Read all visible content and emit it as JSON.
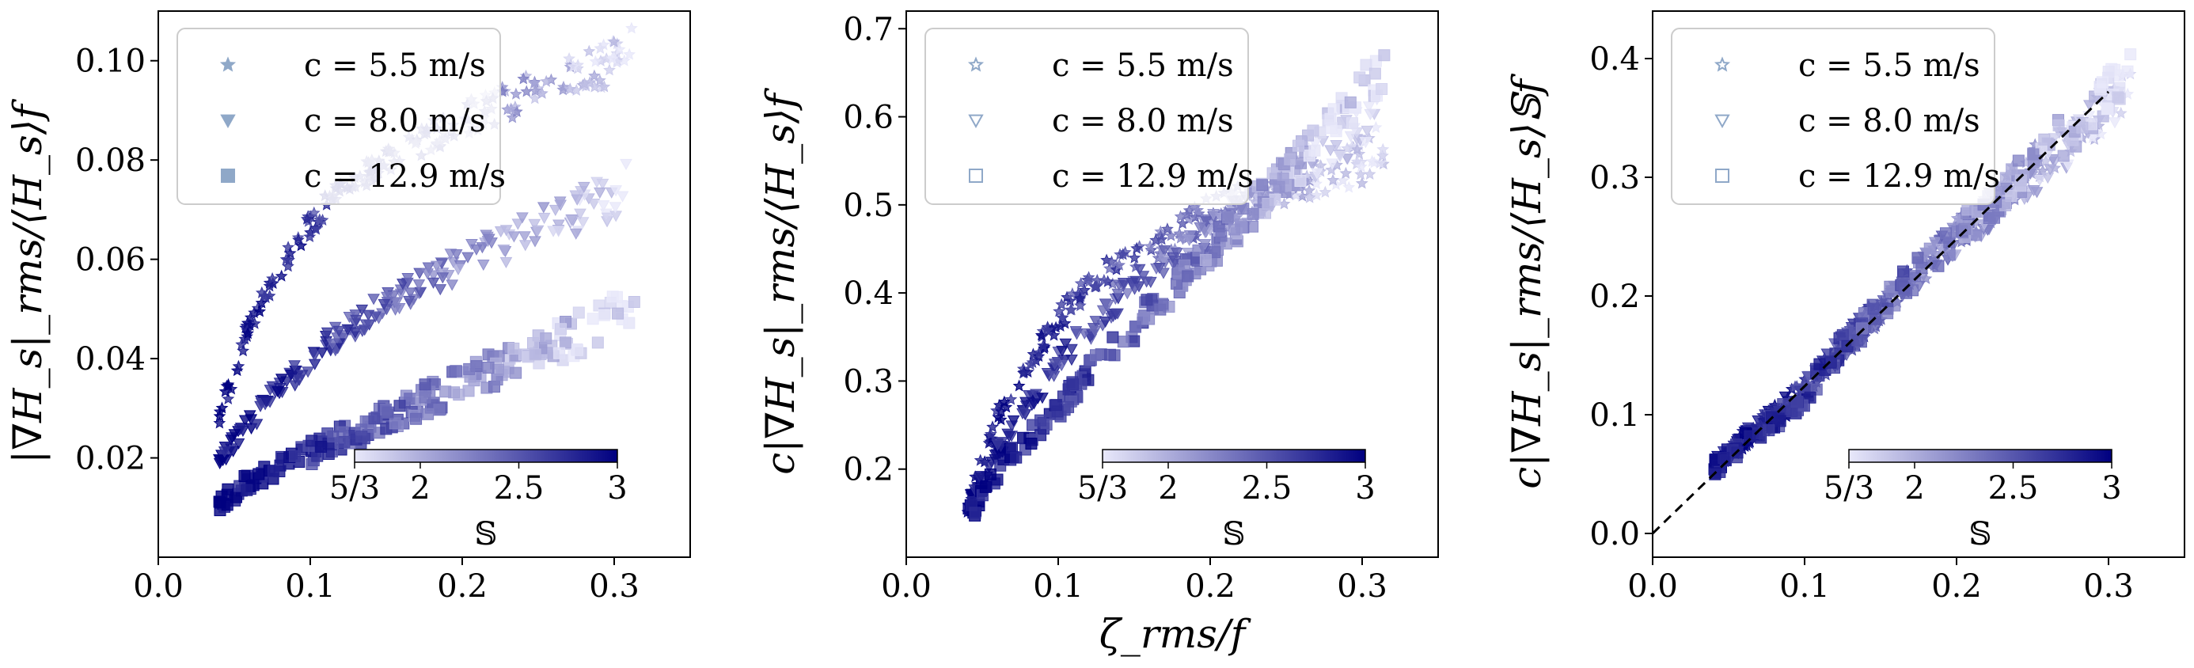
{
  "figure": {
    "panel_count": 3
  },
  "chart_data": [
    {
      "type": "scatter",
      "title": "",
      "xlabel": "",
      "ylabel": "|∇H_s|_rms/⟨H_s⟩f",
      "xlim": [
        0.0,
        0.35
      ],
      "ylim": [
        0.0,
        0.11
      ],
      "xticks": [
        0.0,
        0.1,
        0.2,
        0.3
      ],
      "xtick_labels": [
        "0.0",
        "0.1",
        "0.2",
        "0.3"
      ],
      "yticks": [
        0.02,
        0.04,
        0.06,
        0.08,
        0.1
      ],
      "ytick_labels": [
        "0.02",
        "0.04",
        "0.06",
        "0.08",
        "0.10"
      ],
      "legend_position": "top-left",
      "legend_marker_style": "filled",
      "colorbar": {
        "label": "𝕊",
        "range": [
          1.6667,
          3.0
        ],
        "ticks": [
          1.6667,
          2.0,
          2.5,
          3.0
        ],
        "tick_labels": [
          "5/3",
          "2",
          "2.5",
          "3"
        ],
        "cmap": [
          "#e8e8fa",
          "#000080"
        ]
      },
      "series": [
        {
          "name": "c = 5.5 m/s",
          "marker": "star",
          "x_range": [
            0.04,
            0.315
          ],
          "band": [
            [
              0.04,
              0.028
            ],
            [
              0.06,
              0.047
            ],
            [
              0.08,
              0.058
            ],
            [
              0.1,
              0.067
            ],
            [
              0.12,
              0.074
            ],
            [
              0.15,
              0.08
            ],
            [
              0.2,
              0.088
            ],
            [
              0.25,
              0.094
            ],
            [
              0.3,
              0.1
            ],
            [
              0.315,
              0.104
            ]
          ]
        },
        {
          "name": "c = 8.0 m/s",
          "marker": "triangle-down",
          "x_range": [
            0.04,
            0.31
          ],
          "band": [
            [
              0.04,
              0.019
            ],
            [
              0.06,
              0.027
            ],
            [
              0.08,
              0.034
            ],
            [
              0.1,
              0.04
            ],
            [
              0.12,
              0.045
            ],
            [
              0.15,
              0.052
            ],
            [
              0.2,
              0.059
            ],
            [
              0.25,
              0.066
            ],
            [
              0.3,
              0.073
            ],
            [
              0.31,
              0.075
            ]
          ]
        },
        {
          "name": "c = 12.9 m/s",
          "marker": "square",
          "x_range": [
            0.04,
            0.315
          ],
          "band": [
            [
              0.04,
              0.011
            ],
            [
              0.06,
              0.015
            ],
            [
              0.08,
              0.018
            ],
            [
              0.1,
              0.021
            ],
            [
              0.12,
              0.024
            ],
            [
              0.15,
              0.028
            ],
            [
              0.2,
              0.035
            ],
            [
              0.25,
              0.041
            ],
            [
              0.3,
              0.049
            ],
            [
              0.315,
              0.051
            ]
          ]
        }
      ]
    },
    {
      "type": "scatter",
      "title": "",
      "xlabel": "ζ_rms/f",
      "ylabel": "c|∇H_s|_rms/⟨H_s⟩f",
      "xlim": [
        0.0,
        0.35
      ],
      "ylim": [
        0.1,
        0.72
      ],
      "xticks": [
        0.0,
        0.1,
        0.2,
        0.3
      ],
      "xtick_labels": [
        "0.0",
        "0.1",
        "0.2",
        "0.3"
      ],
      "yticks": [
        0.2,
        0.3,
        0.4,
        0.5,
        0.6,
        0.7
      ],
      "ytick_labels": [
        "0.2",
        "0.3",
        "0.4",
        "0.5",
        "0.6",
        "0.7"
      ],
      "legend_position": "top-left",
      "legend_marker_style": "open",
      "colorbar": {
        "label": "𝕊",
        "range": [
          1.6667,
          3.0
        ],
        "ticks": [
          1.6667,
          2.0,
          2.5,
          3.0
        ],
        "tick_labels": [
          "5/3",
          "2",
          "2.5",
          "3"
        ],
        "cmap": [
          "#e8e8fa",
          "#000080"
        ]
      },
      "series": [
        {
          "name": "c = 5.5 m/s",
          "marker": "star",
          "x_range": [
            0.04,
            0.315
          ],
          "band": [
            [
              0.04,
              0.155
            ],
            [
              0.06,
              0.26
            ],
            [
              0.08,
              0.32
            ],
            [
              0.1,
              0.37
            ],
            [
              0.12,
              0.41
            ],
            [
              0.15,
              0.44
            ],
            [
              0.2,
              0.49
            ],
            [
              0.25,
              0.52
            ],
            [
              0.3,
              0.55
            ],
            [
              0.315,
              0.57
            ]
          ]
        },
        {
          "name": "c = 8.0 m/s",
          "marker": "triangle-down",
          "x_range": [
            0.04,
            0.31
          ],
          "band": [
            [
              0.04,
              0.155
            ],
            [
              0.06,
              0.22
            ],
            [
              0.08,
              0.27
            ],
            [
              0.1,
              0.32
            ],
            [
              0.12,
              0.36
            ],
            [
              0.15,
              0.41
            ],
            [
              0.2,
              0.47
            ],
            [
              0.25,
              0.53
            ],
            [
              0.3,
              0.59
            ],
            [
              0.31,
              0.6
            ]
          ]
        },
        {
          "name": "c = 12.9 m/s",
          "marker": "square",
          "x_range": [
            0.04,
            0.315
          ],
          "band": [
            [
              0.04,
              0.145
            ],
            [
              0.06,
              0.195
            ],
            [
              0.08,
              0.235
            ],
            [
              0.1,
              0.27
            ],
            [
              0.12,
              0.31
            ],
            [
              0.15,
              0.36
            ],
            [
              0.2,
              0.45
            ],
            [
              0.25,
              0.53
            ],
            [
              0.3,
              0.63
            ],
            [
              0.315,
              0.66
            ]
          ]
        }
      ]
    },
    {
      "type": "scatter",
      "title": "",
      "xlabel": "",
      "ylabel": "c|∇H_s|_rms/⟨H_s⟩𝕊f",
      "xlim": [
        0.0,
        0.35
      ],
      "ylim": [
        -0.02,
        0.44
      ],
      "xticks": [
        0.0,
        0.1,
        0.2,
        0.3
      ],
      "xtick_labels": [
        "0.0",
        "0.1",
        "0.2",
        "0.3"
      ],
      "yticks": [
        0.0,
        0.1,
        0.2,
        0.3,
        0.4
      ],
      "ytick_labels": [
        "0.0",
        "0.1",
        "0.2",
        "0.3",
        "0.4"
      ],
      "legend_position": "top-left",
      "legend_marker_style": "open",
      "reference_line": {
        "style": "dashed",
        "color": "#000000",
        "x": [
          0.0,
          0.3
        ],
        "y": [
          0.0,
          0.372
        ]
      },
      "colorbar": {
        "label": "𝕊",
        "range": [
          1.6667,
          3.0
        ],
        "ticks": [
          1.6667,
          2.0,
          2.5,
          3.0
        ],
        "tick_labels": [
          "5/3",
          "2",
          "2.5",
          "3"
        ],
        "cmap": [
          "#e8e8fa",
          "#000080"
        ]
      },
      "series": [
        {
          "name": "c = 5.5 m/s",
          "marker": "star",
          "x_range": [
            0.04,
            0.315
          ],
          "band": [
            [
              0.04,
              0.055
            ],
            [
              0.06,
              0.08
            ],
            [
              0.08,
              0.1
            ],
            [
              0.1,
              0.12
            ],
            [
              0.12,
              0.15
            ],
            [
              0.15,
              0.19
            ],
            [
              0.2,
              0.25
            ],
            [
              0.25,
              0.31
            ],
            [
              0.3,
              0.36
            ],
            [
              0.315,
              0.37
            ]
          ]
        },
        {
          "name": "c = 8.0 m/s",
          "marker": "triangle-down",
          "x_range": [
            0.04,
            0.31
          ],
          "band": [
            [
              0.04,
              0.058
            ],
            [
              0.06,
              0.078
            ],
            [
              0.08,
              0.098
            ],
            [
              0.1,
              0.12
            ],
            [
              0.12,
              0.15
            ],
            [
              0.15,
              0.19
            ],
            [
              0.2,
              0.25
            ],
            [
              0.25,
              0.3
            ],
            [
              0.3,
              0.36
            ],
            [
              0.31,
              0.37
            ]
          ]
        },
        {
          "name": "c = 12.9 m/s",
          "marker": "square",
          "x_range": [
            0.04,
            0.315
          ],
          "band": [
            [
              0.04,
              0.055
            ],
            [
              0.06,
              0.075
            ],
            [
              0.08,
              0.095
            ],
            [
              0.1,
              0.115
            ],
            [
              0.12,
              0.15
            ],
            [
              0.15,
              0.19
            ],
            [
              0.2,
              0.25
            ],
            [
              0.25,
              0.31
            ],
            [
              0.3,
              0.37
            ],
            [
              0.315,
              0.39
            ]
          ]
        }
      ]
    }
  ]
}
